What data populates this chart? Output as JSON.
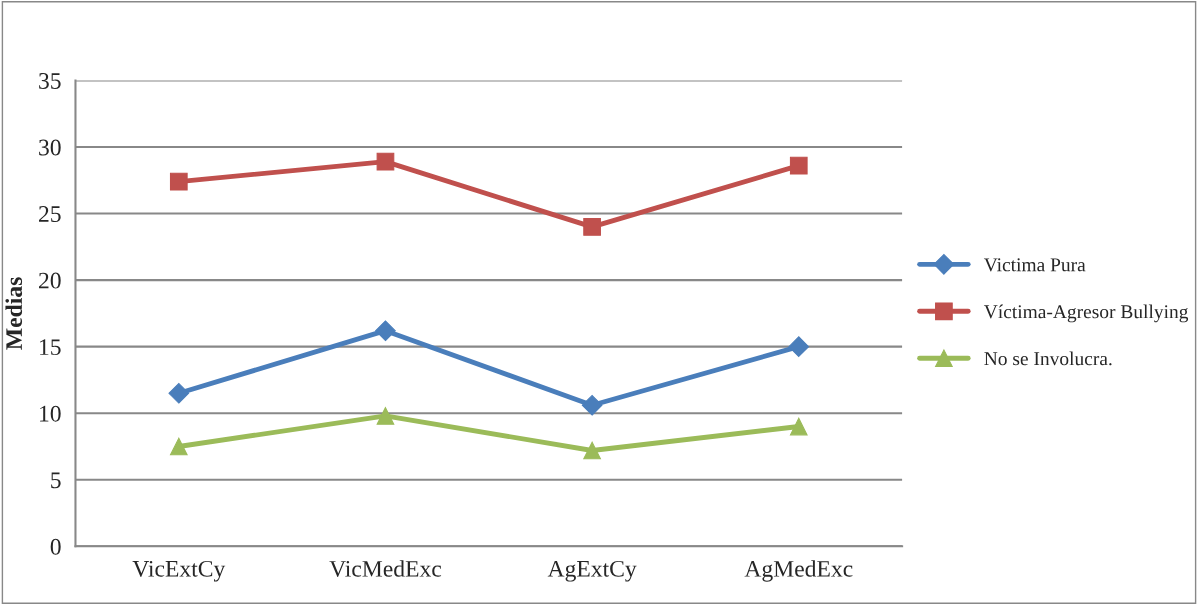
{
  "chart_data": {
    "type": "line",
    "ylabel": "Medias",
    "categories": [
      "VicExtCy",
      "VicMedExc",
      "AgExtCy",
      "AgMedExc"
    ],
    "series": [
      {
        "name": "Victima Pura",
        "color": "#4a7ebb",
        "marker": "diamond",
        "values": [
          11.5,
          16.2,
          10.6,
          15.0
        ]
      },
      {
        "name": "Víctima-Agresor Bullying",
        "color": "#c0504d",
        "marker": "square",
        "values": [
          27.4,
          28.9,
          24.0,
          28.6
        ]
      },
      {
        "name": "No se Involucra.",
        "color": "#9bbb59",
        "marker": "triangle",
        "values": [
          7.5,
          9.8,
          7.2,
          9.0
        ]
      }
    ],
    "ylim": [
      0,
      35
    ],
    "yticks": [
      0,
      5,
      10,
      15,
      20,
      25,
      30,
      35
    ],
    "grid": "y",
    "legend": "right"
  }
}
